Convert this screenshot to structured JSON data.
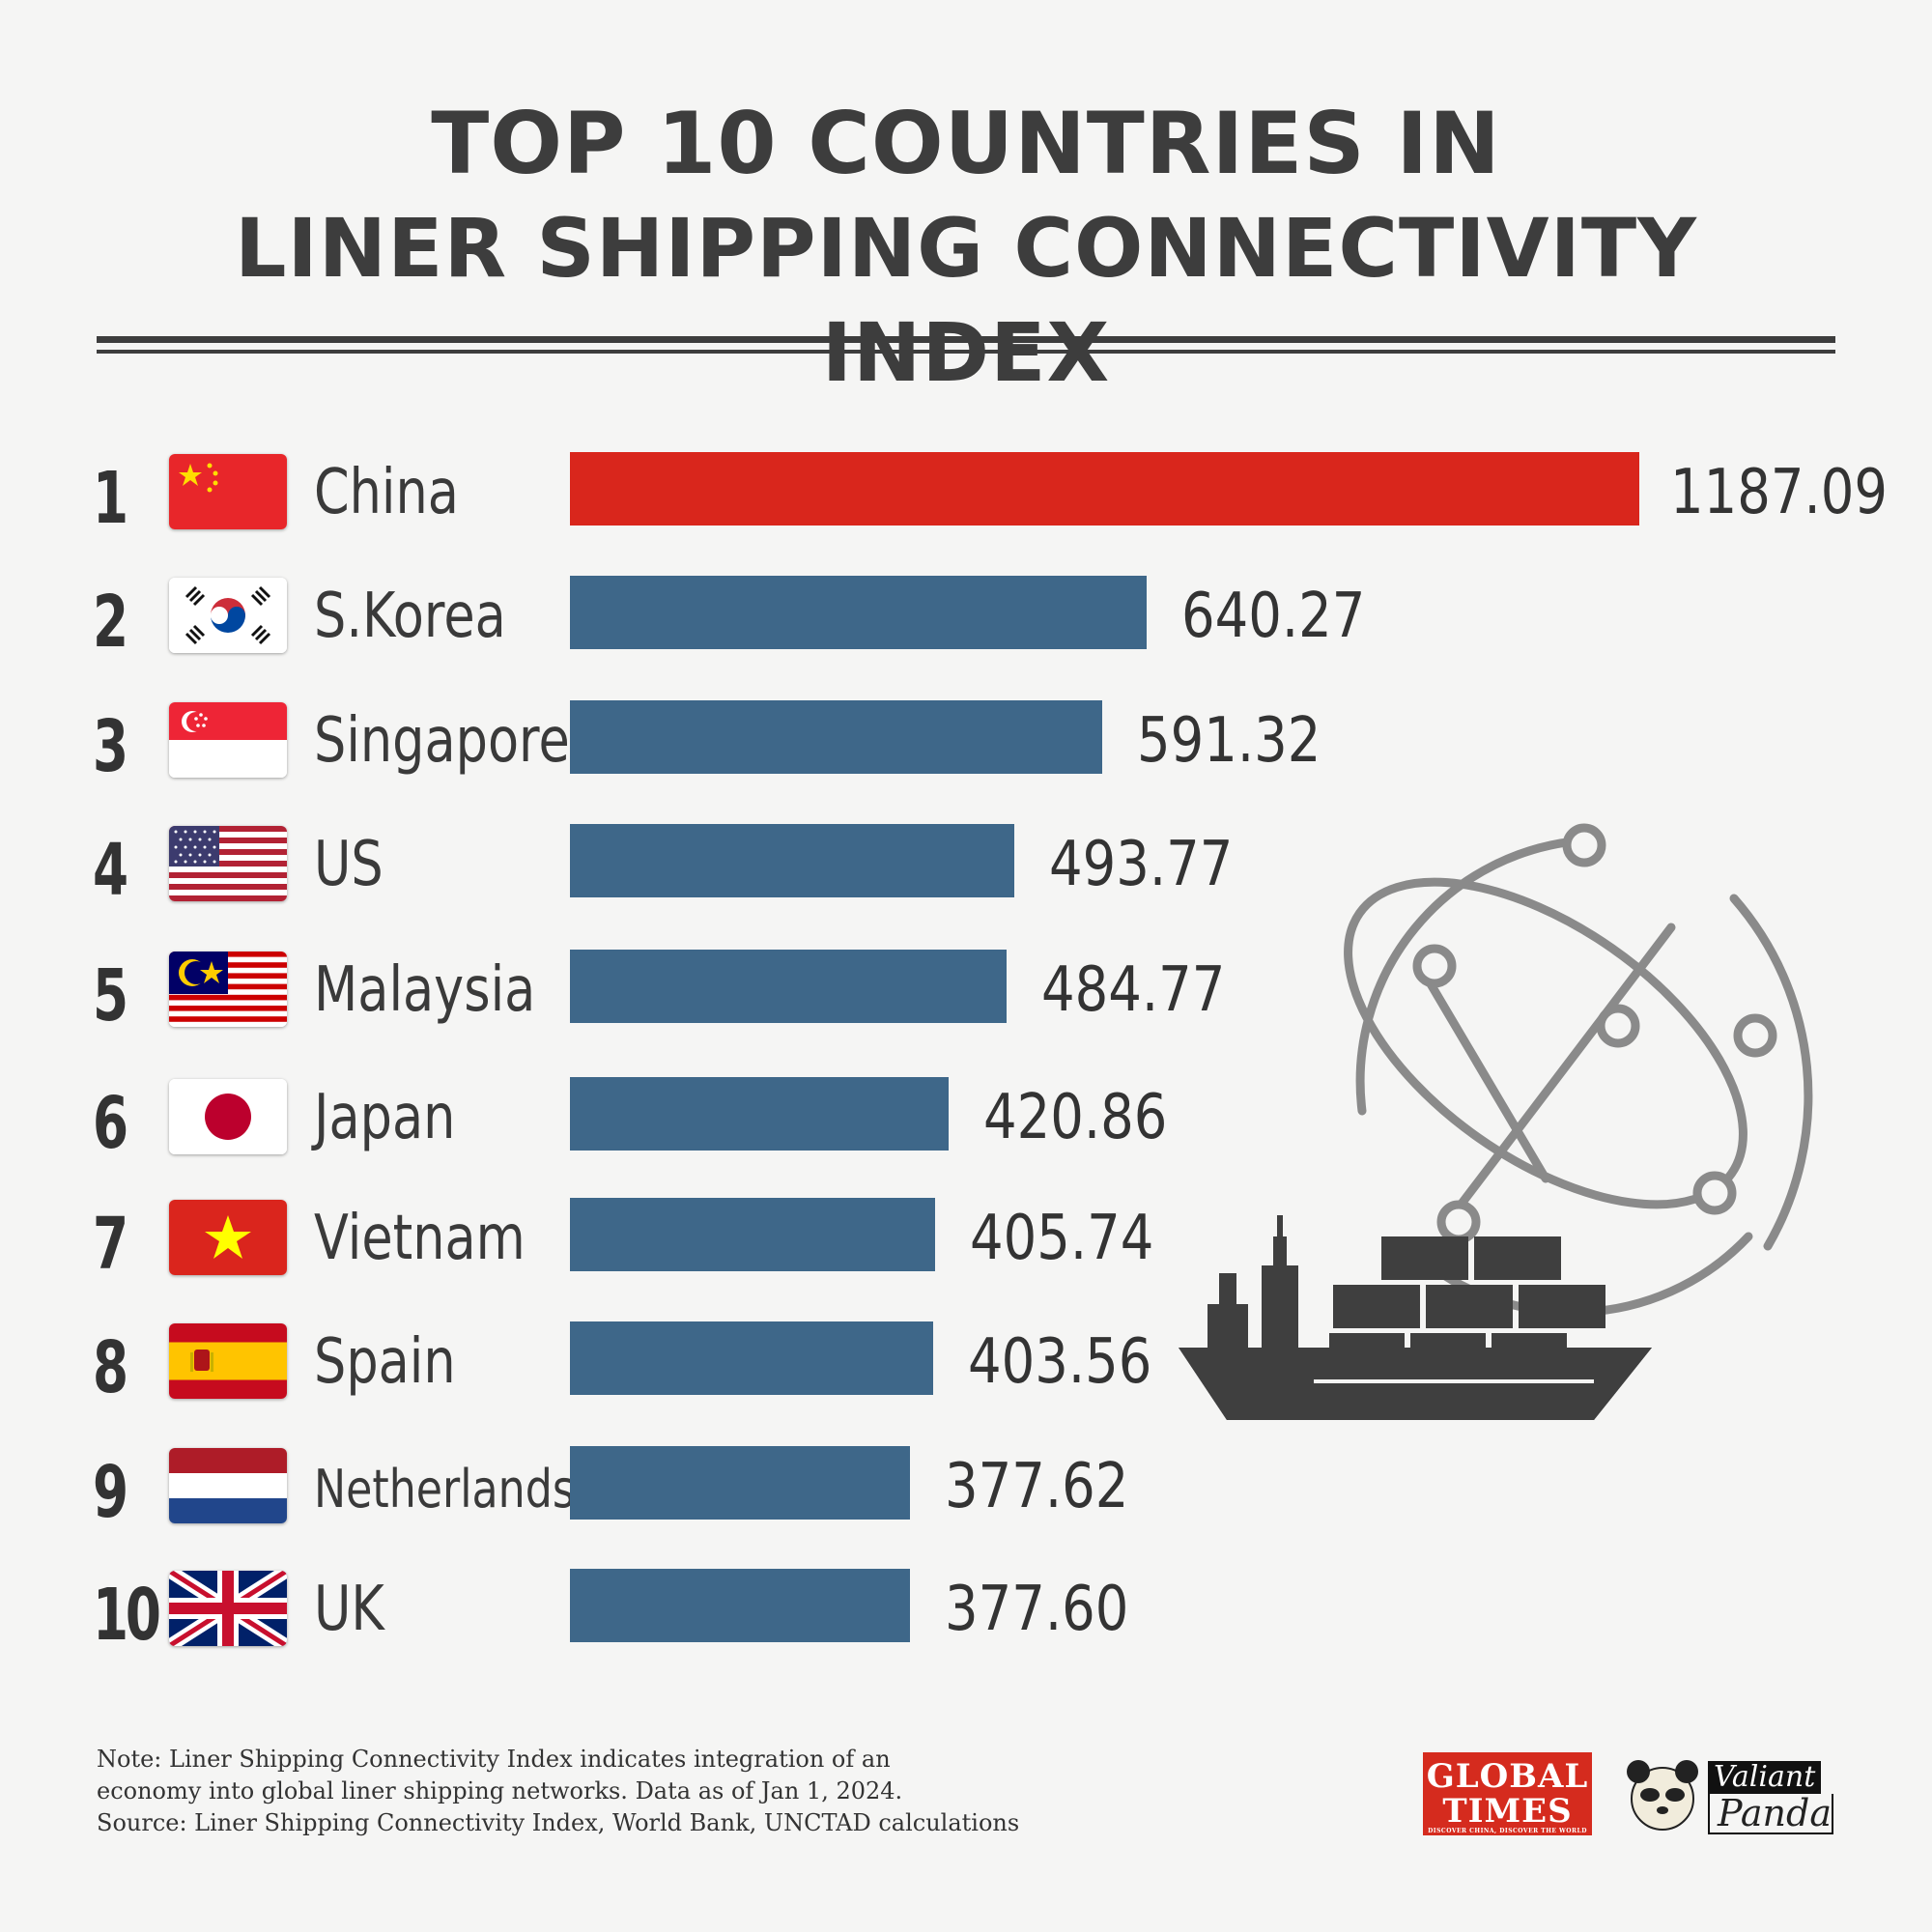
{
  "title": {
    "line1": "TOP 10 COUNTRIES IN",
    "line2": "LINER SHIPPING CONNECTIVITY INDEX"
  },
  "chart_data": {
    "type": "bar",
    "orientation": "horizontal",
    "title": "TOP 10 COUNTRIES IN LINER SHIPPING CONNECTIVITY INDEX",
    "categories": [
      "China",
      "S.Korea",
      "Singapore",
      "US",
      "Malaysia",
      "Japan",
      "Vietnam",
      "Spain",
      "Netherlands",
      "UK"
    ],
    "ranks": [
      "1",
      "2",
      "3",
      "4",
      "5",
      "6",
      "7",
      "8",
      "9",
      "10"
    ],
    "values": [
      1187.09,
      640.27,
      591.32,
      493.77,
      484.77,
      420.86,
      405.74,
      403.56,
      377.62,
      377.6
    ],
    "value_labels": [
      "1187.09",
      "640.27",
      "591.32",
      "493.77",
      "484.77",
      "420.86",
      "405.74",
      "403.56",
      "377.62",
      "377.60"
    ],
    "colors": {
      "highlight": "#d9261c",
      "default": "#3e6789"
    },
    "xlim": [
      0,
      1187.09
    ],
    "grid": false,
    "legend": "none"
  },
  "flags": [
    "china-flag",
    "south-korea-flag",
    "singapore-flag",
    "us-flag",
    "malaysia-flag",
    "japan-flag",
    "vietnam-flag",
    "spain-flag",
    "netherlands-flag",
    "uk-flag"
  ],
  "footer": {
    "note_line1": "Note: Liner Shipping Connectivity Index indicates integration of an",
    "note_line2": "economy into global liner shipping networks. Data as of Jan 1, 2024.",
    "source": "Source: Liner Shipping Connectivity Index, World Bank, UNCTAD calculations",
    "logo1_line1": "GLOBAL",
    "logo1_line2": "TIMES",
    "logo1_tagline": "DISCOVER CHINA, DISCOVER THE WORLD",
    "logo2_line1": "Valiant",
    "logo2_line2": "Panda"
  },
  "illustration": "cargo-ship-and-globe-icon"
}
